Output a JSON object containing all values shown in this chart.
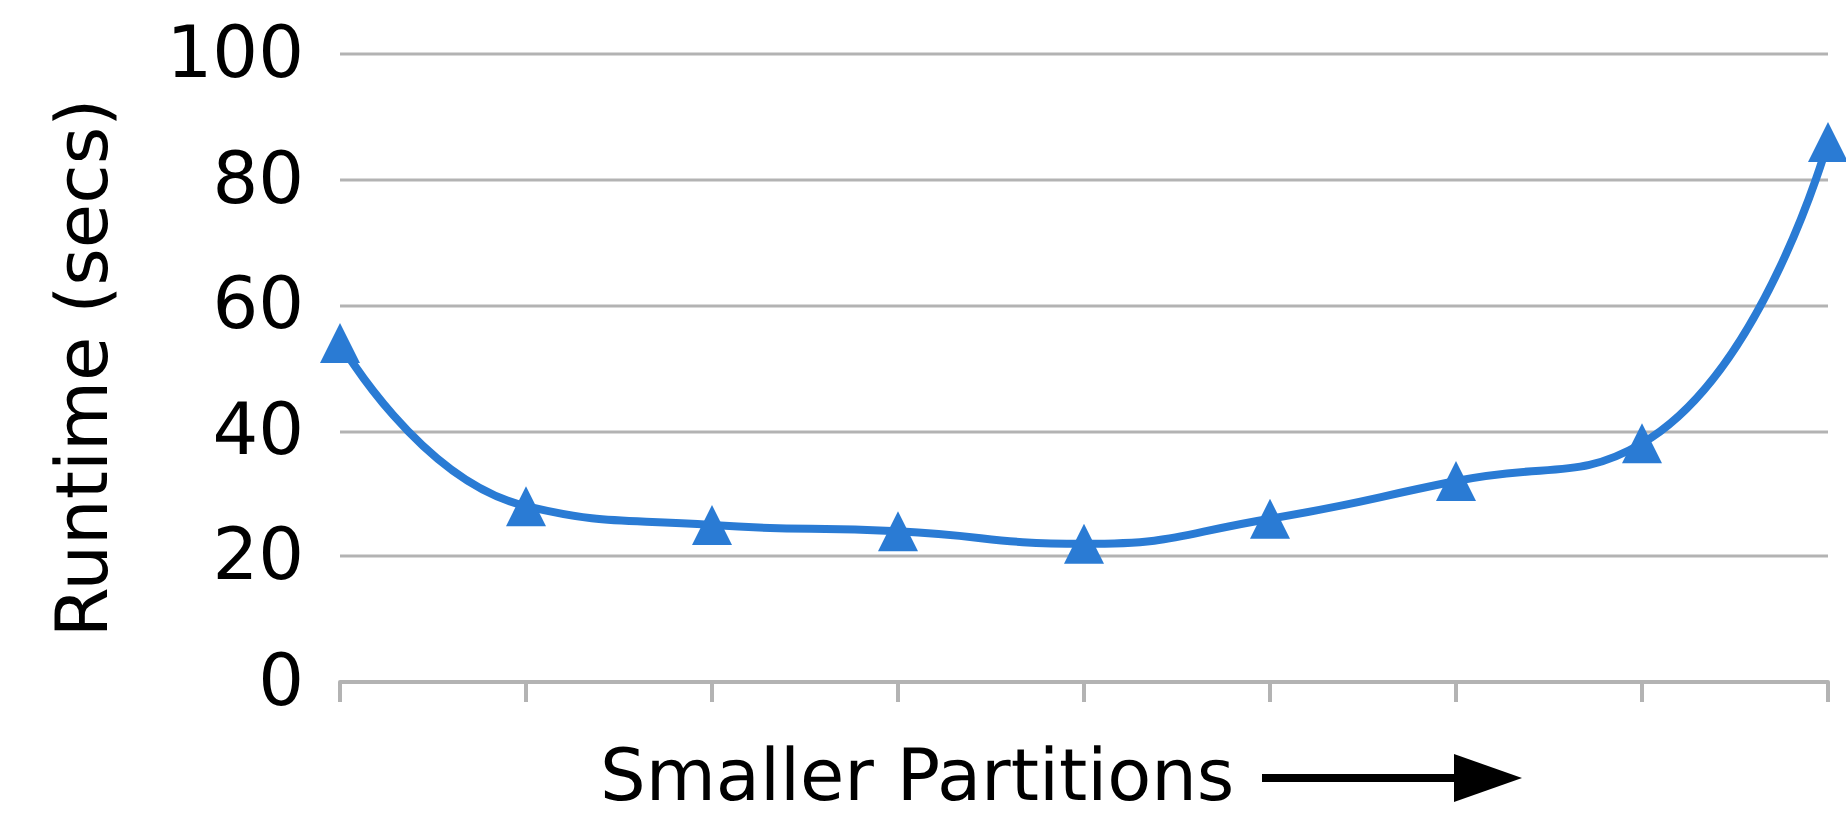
{
  "chart_data": {
    "type": "line",
    "xlabel": "Smaller Partitions",
    "ylabel": "Runtime (secs)",
    "categories": [
      null,
      null,
      null,
      null,
      null,
      null,
      null,
      null,
      null
    ],
    "series": [
      {
        "color": "#2a7bd4",
        "values": [
          54,
          28,
          25,
          24,
          22,
          26,
          32,
          38,
          86
        ]
      }
    ],
    "ylim": [
      0,
      100
    ],
    "yticks": [
      0,
      20,
      40,
      60,
      80,
      100
    ],
    "grid": "y",
    "marker": "triangle",
    "line_style": "solid"
  }
}
